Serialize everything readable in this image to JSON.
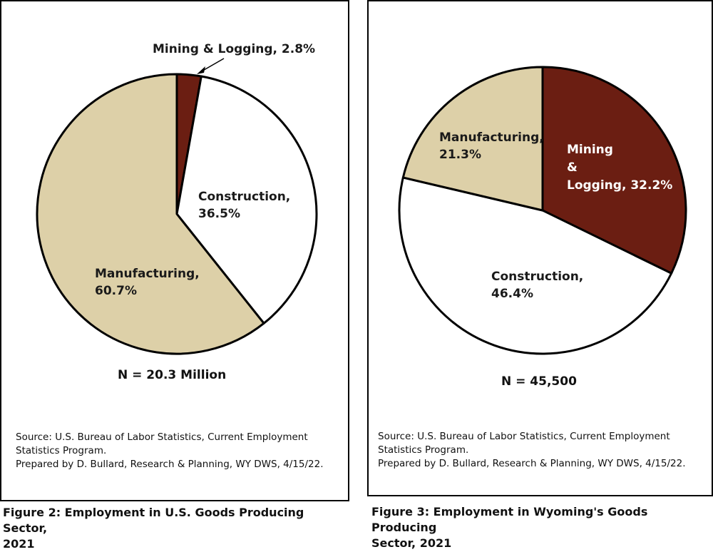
{
  "chart_data": [
    {
      "type": "pie",
      "slices": [
        {
          "label": "Mining & Logging",
          "value": 2.8,
          "display": "Mining & Logging, 2.8%",
          "color": "#6b1e12"
        },
        {
          "label": "Construction",
          "value": 36.5,
          "display_lines": [
            "Construction,",
            "36.5%"
          ],
          "color": "#ffffff"
        },
        {
          "label": "Manufacturing",
          "value": 60.7,
          "display_lines": [
            "Manufacturing,",
            "60.7%"
          ],
          "color": "#ddd0a8"
        }
      ],
      "n_label": "N = 20.3 Million",
      "source_lines": [
        "Source: U.S. Bureau of Labor Statistics, Current Employment",
        "Statistics Program.",
        "Prepared by D. Bullard, Research & Planning, WY DWS, 4/15/22."
      ],
      "caption_lines": [
        "Figure 2: Employment in U.S. Goods Producing Sector,",
        "2021"
      ]
    },
    {
      "type": "pie",
      "slices": [
        {
          "label": "Mining & Logging",
          "value": 32.2,
          "display_lines": [
            "Mining",
            "&",
            "Logging, 32.2%"
          ],
          "color": "#6b1e12"
        },
        {
          "label": "Construction",
          "value": 46.4,
          "display_lines": [
            "Construction,",
            "46.4%"
          ],
          "color": "#ffffff"
        },
        {
          "label": "Manufacturing",
          "value": 21.3,
          "display_lines": [
            "Manufacturing,",
            "21.3%"
          ],
          "color": "#ddd0a8"
        }
      ],
      "n_label": "N = 45,500",
      "source_lines": [
        "Source: U.S. Bureau of Labor Statistics, Current Employment",
        "Statistics Program.",
        "Prepared by D. Bullard, Research & Planning, WY DWS, 4/15/22."
      ],
      "caption_lines": [
        "Figure 3: Employment in Wyoming's Goods Producing",
        "Sector, 2021"
      ]
    }
  ]
}
